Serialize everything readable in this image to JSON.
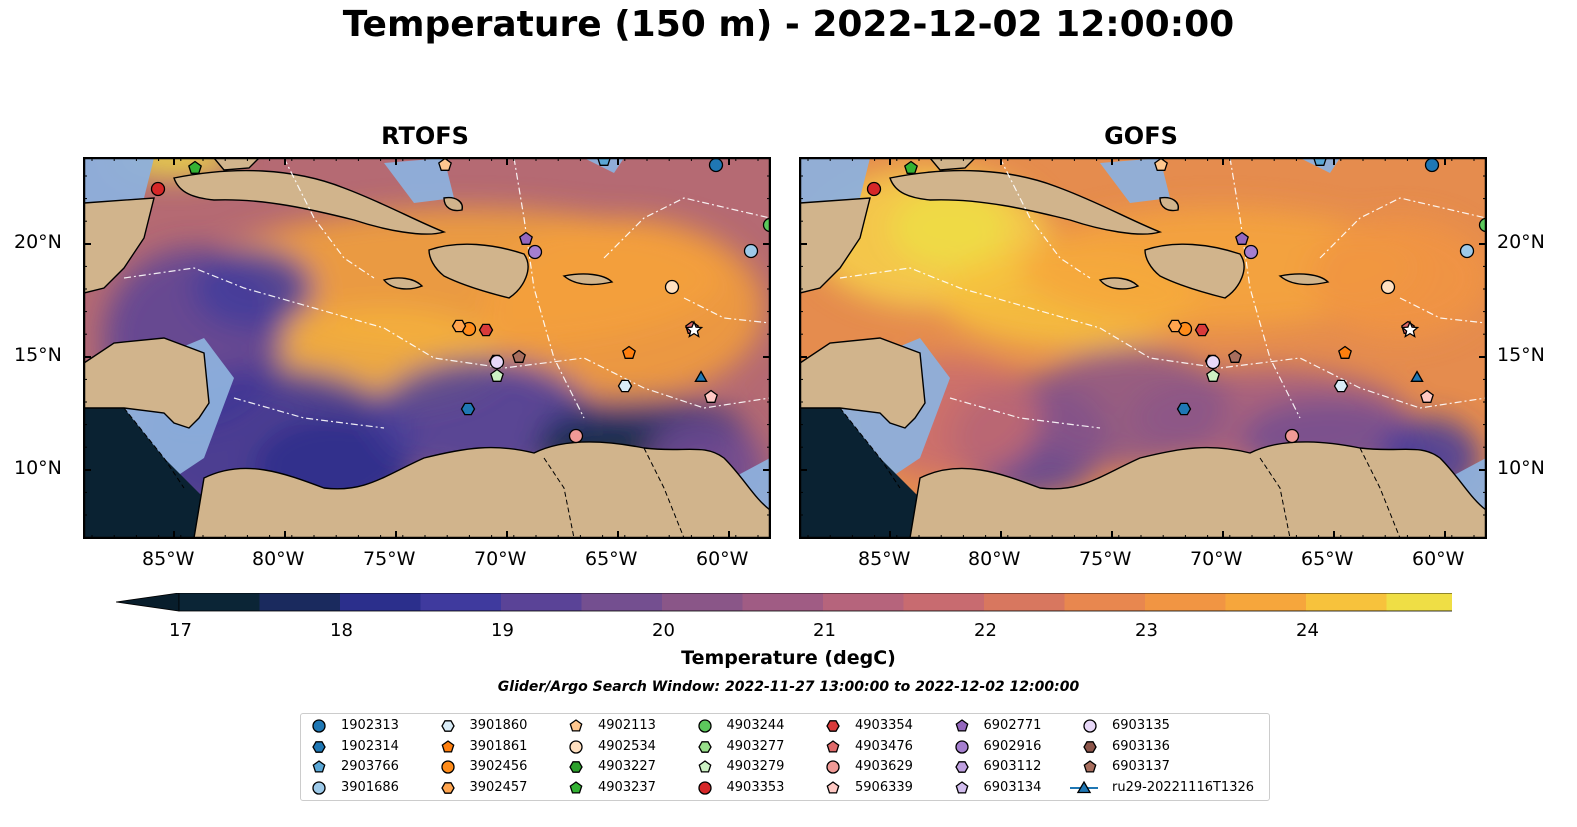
{
  "title": "Temperature (150 m) - 2022-12-02 12:00:00",
  "panels": [
    {
      "title": "RTOFS",
      "scheme": "rtofs"
    },
    {
      "title": "GOFS",
      "scheme": "gofs"
    }
  ],
  "axes": {
    "lon_ticks": [
      "85°W",
      "80°W",
      "75°W",
      "70°W",
      "65°W",
      "60°W"
    ],
    "lat_ticks": [
      "20°N",
      "15°N",
      "10°N"
    ]
  },
  "colorbar": {
    "label": "Temperature (degC)",
    "ticks": [
      "17",
      "18",
      "19",
      "20",
      "21",
      "22",
      "23",
      "24"
    ],
    "colors": [
      "#0b2536",
      "#1a2a5e",
      "#2b2f8c",
      "#3f3a9e",
      "#5a4397",
      "#744f90",
      "#8a5688",
      "#a05c84",
      "#b6647c",
      "#c86b70",
      "#d8775f",
      "#e8874f",
      "#f19543",
      "#f6a63c",
      "#f7c23c",
      "#efde45"
    ],
    "extend_low": "#081e2c",
    "extend_high": "#eef55a"
  },
  "search_window": "Glider/Argo Search Window: 2022-11-27 13:00:00 to 2022-12-02 12:00:00",
  "legend": [
    {
      "label": "1902313",
      "marker": "circle",
      "color": "#1f77b4"
    },
    {
      "label": "1902314",
      "marker": "hexagon",
      "color": "#1f77b4"
    },
    {
      "label": "2903766",
      "marker": "pentagon",
      "color": "#5aa7d6"
    },
    {
      "label": "3901686",
      "marker": "circle",
      "color": "#9ecae9"
    },
    {
      "label": "3901860",
      "marker": "hexagon",
      "color": "#d9ecf7"
    },
    {
      "label": "3901861",
      "marker": "pentagon",
      "color": "#ff7f0e"
    },
    {
      "label": "3902456",
      "marker": "circle",
      "color": "#ff8c1a"
    },
    {
      "label": "3902457",
      "marker": "hexagon",
      "color": "#ffa54f"
    },
    {
      "label": "4902113",
      "marker": "pentagon",
      "color": "#ffc78f"
    },
    {
      "label": "4902534",
      "marker": "circle",
      "color": "#ffe0c0"
    },
    {
      "label": "4903227",
      "marker": "hexagon",
      "color": "#2ca02c"
    },
    {
      "label": "4903237",
      "marker": "pentagon",
      "color": "#33b233"
    },
    {
      "label": "4903244",
      "marker": "circle",
      "color": "#5cc95c"
    },
    {
      "label": "4903277",
      "marker": "hexagon",
      "color": "#98df8a"
    },
    {
      "label": "4903279",
      "marker": "pentagon",
      "color": "#cdf2c4"
    },
    {
      "label": "4903353",
      "marker": "circle",
      "color": "#d62728"
    },
    {
      "label": "4903354",
      "marker": "hexagon",
      "color": "#d93a3a"
    },
    {
      "label": "4903476",
      "marker": "pentagon",
      "color": "#e06a6a"
    },
    {
      "label": "4903629",
      "marker": "circle",
      "color": "#f09a96"
    },
    {
      "label": "5906339",
      "marker": "pentagon",
      "color": "#ffc9c4"
    },
    {
      "label": "6902771",
      "marker": "pentagon",
      "color": "#9467bd"
    },
    {
      "label": "6902916",
      "marker": "circle",
      "color": "#a57fcf"
    },
    {
      "label": "6903112",
      "marker": "hexagon",
      "color": "#bfa0e0"
    },
    {
      "label": "6903134",
      "marker": "pentagon",
      "color": "#d2bdee"
    },
    {
      "label": "6903135",
      "marker": "circle",
      "color": "#e8d8f8"
    },
    {
      "label": "6903136",
      "marker": "hexagon",
      "color": "#8c564b"
    },
    {
      "label": "6903137",
      "marker": "pentagon",
      "color": "#a86e5e"
    },
    {
      "label": "ru29-20221116T1326",
      "marker": "triangle-line",
      "color": "#1f77b4"
    }
  ]
}
